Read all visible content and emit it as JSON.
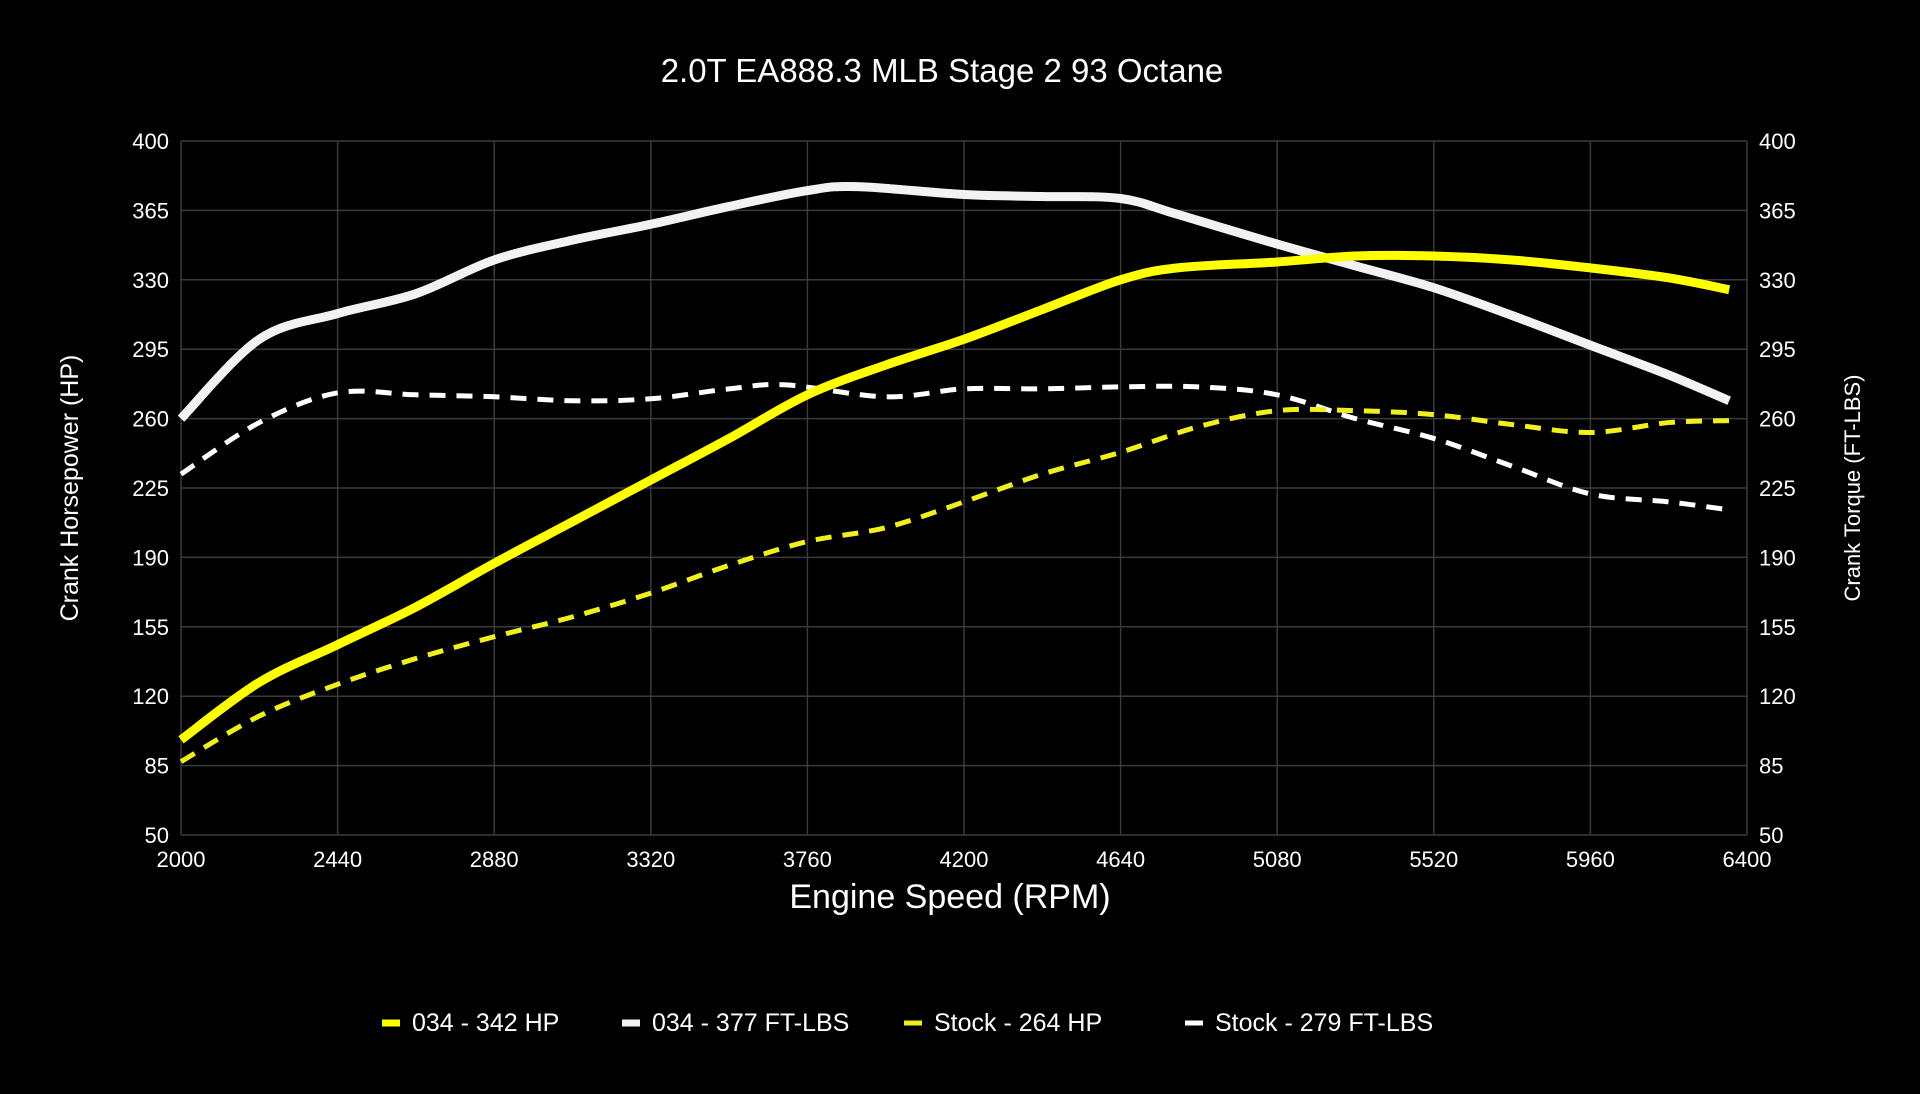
{
  "chart_data": {
    "type": "line",
    "title": "2.0T EA888.3 MLB Stage 2 93 Octane",
    "xlabel": "Engine Speed (RPM)",
    "ylabel": "Crank Horsepower (HP)",
    "y2label": "Crank Torque (FT-LBS)",
    "xlim": [
      2000,
      6400
    ],
    "ylim": [
      50,
      400
    ],
    "y2lim": [
      50,
      400
    ],
    "x_ticks": [
      2000,
      2440,
      2880,
      3320,
      3760,
      4200,
      4640,
      5080,
      5520,
      5960,
      6400
    ],
    "y_ticks": [
      50,
      85,
      120,
      155,
      190,
      225,
      260,
      295,
      330,
      365,
      400
    ],
    "grid": true,
    "legend_placement": "bottom",
    "background": "#000000",
    "series": [
      {
        "name": "034 - 342 HP",
        "color": "#ffff00",
        "style": "solid",
        "x": [
          2000,
          2220,
          2440,
          2660,
          2880,
          3100,
          3320,
          3540,
          3760,
          3980,
          4200,
          4420,
          4640,
          4800,
          5080,
          5300,
          5520,
          5740,
          5960,
          6180,
          6350
        ],
        "y": [
          98,
          127,
          146,
          165,
          187,
          208,
          229,
          250,
          272,
          287,
          300,
          315,
          330,
          336,
          339,
          342,
          342,
          340,
          336,
          331,
          325
        ]
      },
      {
        "name": "034 - 377 FT-LBS",
        "color": "#f2f2f2",
        "style": "solid",
        "x": [
          2000,
          2220,
          2440,
          2660,
          2880,
          3100,
          3320,
          3540,
          3760,
          3900,
          4200,
          4420,
          4640,
          4800,
          5080,
          5300,
          5520,
          5740,
          5960,
          6180,
          6350
        ],
        "y": [
          260,
          300,
          313,
          323,
          340,
          350,
          358,
          367,
          375,
          377,
          373,
          372,
          371,
          363,
          348,
          337,
          326,
          312,
          297,
          282,
          269
        ]
      },
      {
        "name": "Stock - 264 HP",
        "color": "#f0f020",
        "style": "dashed",
        "x": [
          2000,
          2220,
          2440,
          2660,
          2880,
          3100,
          3320,
          3540,
          3760,
          3980,
          4200,
          4420,
          4640,
          4860,
          5080,
          5300,
          5520,
          5740,
          5960,
          6180,
          6350
        ],
        "y": [
          87,
          110,
          126,
          139,
          150,
          160,
          172,
          186,
          198,
          205,
          218,
          232,
          243,
          256,
          264,
          264,
          262,
          257,
          253,
          258,
          259
        ]
      },
      {
        "name": "Stock - 279 FT-LBS",
        "color": "#ffffff",
        "style": "dashed",
        "x": [
          2000,
          2220,
          2440,
          2660,
          2880,
          3100,
          3320,
          3540,
          3700,
          3980,
          4200,
          4420,
          4640,
          4860,
          5080,
          5300,
          5520,
          5740,
          5960,
          6180,
          6350
        ],
        "y": [
          232,
          258,
          273,
          272,
          271,
          269,
          270,
          275,
          277,
          271,
          275,
          275,
          276,
          276,
          272,
          260,
          250,
          236,
          222,
          218,
          214
        ]
      }
    ]
  }
}
